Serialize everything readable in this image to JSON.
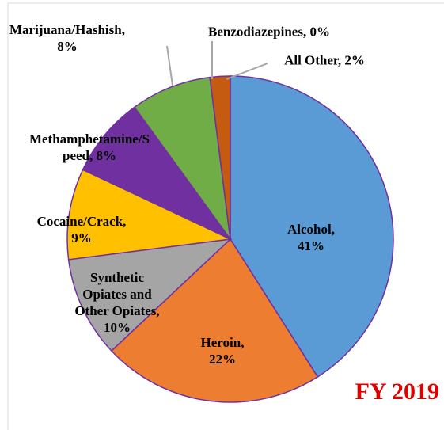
{
  "chart_data": {
    "type": "pie",
    "title": "FY 2019",
    "labels": [
      "Alcohol, 41%",
      "Heroin, 22%",
      "Synthetic Opiates and Other Opiates, 10%",
      "Cocaine/Crack, 9%",
      "Methamphetamine/Speed, 8%",
      "Marijuana/Hashish, 8%",
      "Benzodiazepines, 0%",
      "All Other, 2%"
    ],
    "values": [
      41,
      22,
      10,
      9,
      8,
      8,
      0,
      2
    ],
    "colors": [
      "#5b9bd5",
      "#ed7d31",
      "#a5a5a5",
      "#ffc000",
      "#7030a0",
      "#70ad47",
      "#4472c4",
      "#c55a11"
    ]
  }
}
